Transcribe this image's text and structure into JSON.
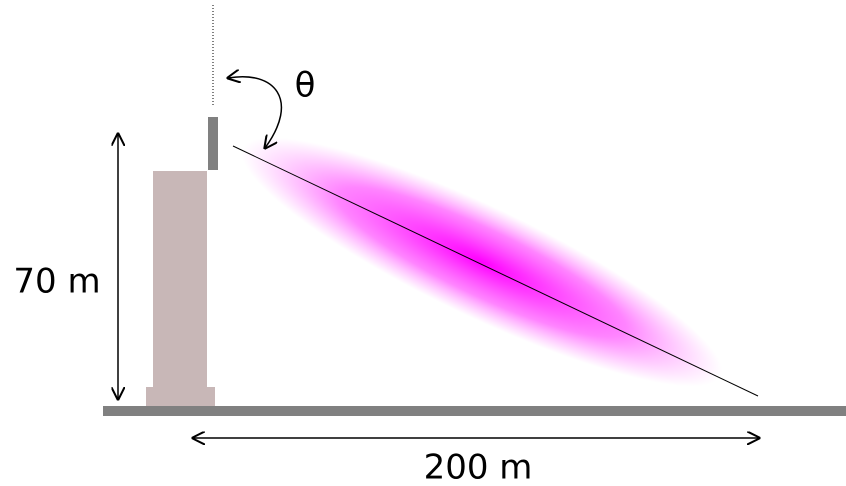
{
  "labels": {
    "angle": "θ",
    "height": "70 m",
    "distance": "200 m"
  }
}
